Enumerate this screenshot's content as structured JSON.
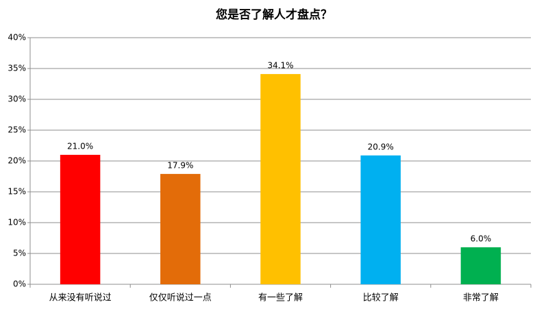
{
  "chart_data": {
    "type": "bar",
    "title": "您是否了解人才盘点？",
    "categories": [
      "从来没有听说过",
      "仅仅听说过一点",
      "有一些了解",
      "比较了解",
      "非常了解"
    ],
    "values": [
      21.0,
      17.9,
      34.1,
      20.9,
      6.0
    ],
    "value_labels": [
      "21.0%",
      "17.9%",
      "34.1%",
      "20.9%",
      "6.0%"
    ],
    "colors": [
      "#ff0000",
      "#e36c09",
      "#ffc000",
      "#00b0f0",
      "#00b050"
    ],
    "ylim": [
      0,
      40
    ],
    "yticks": [
      {
        "value": 0,
        "label": "0%"
      },
      {
        "value": 5,
        "label": "5%"
      },
      {
        "value": 10,
        "label": "10%"
      },
      {
        "value": 15,
        "label": "15%"
      },
      {
        "value": 20,
        "label": "20%"
      },
      {
        "value": 25,
        "label": "25%"
      },
      {
        "value": 30,
        "label": "30%"
      },
      {
        "value": 35,
        "label": "35%"
      },
      {
        "value": 40,
        "label": "40%"
      }
    ],
    "grid": true
  }
}
